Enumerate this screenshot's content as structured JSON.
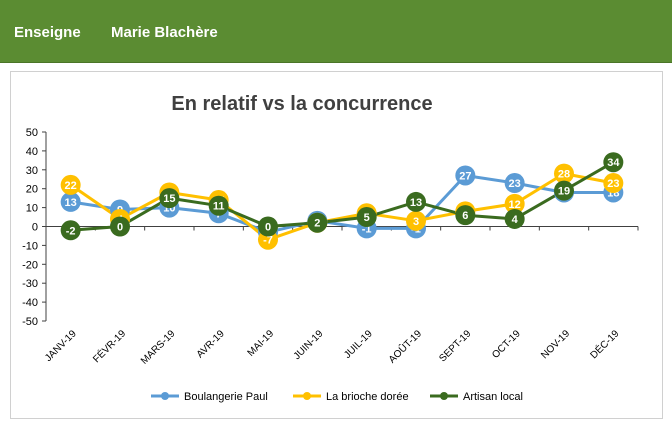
{
  "header": {
    "enseigne_label": "Enseigne",
    "enseigne_value": "Marie Blachère"
  },
  "chart_data": {
    "type": "line",
    "title": "En relatif vs la concurrence",
    "categories": [
      "JANV-19",
      "FÉVR-19",
      "MARS-19",
      "AVR-19",
      "MAI-19",
      "JUIN-19",
      "JUIL-19",
      "AOÛT-19",
      "SEPT-19",
      "OCT-19",
      "NOV-19",
      "DÉC-19"
    ],
    "ylim": [
      -50,
      50
    ],
    "yticks": [
      50,
      40,
      30,
      20,
      10,
      0,
      -10,
      -20,
      -30,
      -40,
      -50
    ],
    "grid": false,
    "legend": "bottom",
    "series": [
      {
        "name": "Boulangerie Paul",
        "color": "#5b9bd5",
        "values": [
          13,
          9,
          10,
          7,
          -3,
          3,
          -1,
          -1,
          27,
          23,
          18,
          18
        ],
        "labels": [
          "13",
          "9",
          "10",
          "7",
          "-3",
          "3",
          "-1",
          "-1",
          "27",
          "23",
          "18",
          "18"
        ]
      },
      {
        "name": "La brioche dorée",
        "color": "#ffc000",
        "values": [
          22,
          4,
          18,
          14,
          -7,
          2,
          7,
          3,
          8,
          12,
          28,
          23
        ],
        "labels": [
          "22",
          "4",
          "18",
          "14",
          "-7",
          "2",
          "7",
          "3",
          "8",
          "12",
          "28",
          "23"
        ]
      },
      {
        "name": "Artisan local",
        "color": "#3a6b1f",
        "values": [
          -2,
          0,
          15,
          11,
          0,
          2,
          5,
          13,
          6,
          4,
          19,
          34
        ],
        "labels": [
          "-2",
          "0",
          "15",
          "11",
          "0",
          "2",
          "5",
          "13",
          "6",
          "4",
          "19",
          "34"
        ]
      }
    ]
  }
}
